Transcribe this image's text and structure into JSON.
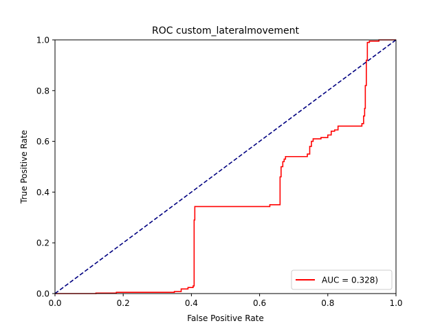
{
  "chart_data": {
    "type": "line",
    "title": "ROC custom_lateralmovement",
    "xlabel": "False Positive Rate",
    "ylabel": "True Positive Rate",
    "xlim": [
      0.0,
      1.0
    ],
    "ylim": [
      0.0,
      1.0
    ],
    "xticks": [
      "0.0",
      "0.2",
      "0.4",
      "0.6",
      "0.8",
      "1.0"
    ],
    "yticks": [
      "0.0",
      "0.2",
      "0.4",
      "0.6",
      "0.8",
      "1.0"
    ],
    "grid": false,
    "legend_position": "lower right",
    "series": [
      {
        "name": "AUC = 0.328)",
        "color": "#ff0000",
        "style": "solid",
        "x": [
          0.0,
          0.12,
          0.12,
          0.18,
          0.18,
          0.35,
          0.35,
          0.37,
          0.37,
          0.39,
          0.39,
          0.405,
          0.405,
          0.408,
          0.408,
          0.41,
          0.41,
          0.63,
          0.63,
          0.66,
          0.66,
          0.663,
          0.663,
          0.668,
          0.668,
          0.672,
          0.672,
          0.676,
          0.676,
          0.69,
          0.69,
          0.74,
          0.74,
          0.747,
          0.747,
          0.752,
          0.752,
          0.757,
          0.757,
          0.78,
          0.78,
          0.8,
          0.8,
          0.81,
          0.81,
          0.82,
          0.82,
          0.83,
          0.83,
          0.84,
          0.84,
          0.9,
          0.9,
          0.905,
          0.905,
          0.908,
          0.908,
          0.91,
          0.91,
          0.913,
          0.913,
          0.916,
          0.916,
          0.922,
          0.922,
          0.95,
          0.95,
          1.0
        ],
        "y": [
          0.0,
          0.0,
          0.002,
          0.002,
          0.005,
          0.005,
          0.008,
          0.008,
          0.018,
          0.018,
          0.024,
          0.024,
          0.03,
          0.03,
          0.29,
          0.29,
          0.343,
          0.343,
          0.35,
          0.35,
          0.46,
          0.46,
          0.5,
          0.5,
          0.52,
          0.52,
          0.53,
          0.53,
          0.54,
          0.54,
          0.54,
          0.54,
          0.55,
          0.55,
          0.58,
          0.58,
          0.6,
          0.6,
          0.61,
          0.61,
          0.615,
          0.615,
          0.625,
          0.625,
          0.64,
          0.64,
          0.645,
          0.645,
          0.66,
          0.66,
          0.66,
          0.66,
          0.67,
          0.67,
          0.7,
          0.7,
          0.73,
          0.73,
          0.82,
          0.82,
          0.92,
          0.92,
          0.99,
          0.99,
          0.995,
          0.995,
          1.0,
          1.0
        ]
      },
      {
        "name": "",
        "color": "#000080",
        "style": "dashed",
        "x": [
          0.0,
          1.0
        ],
        "y": [
          0.0,
          1.0
        ]
      }
    ]
  }
}
